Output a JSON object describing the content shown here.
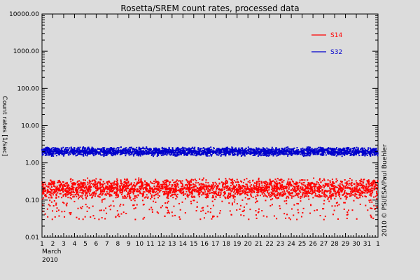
{
  "chart_data": {
    "type": "scatter",
    "title": "Rosetta/SREM count rates, processed data",
    "ylabel": "Count rates [1/sec]",
    "xlabel_month": "March",
    "xlabel_year": "2010",
    "credit": "2010 © PSI/ESA/Paul Buehler",
    "y_scale": "log",
    "ylim": [
      0.01,
      10000
    ],
    "y_ticks": [
      "0.01",
      "0.10",
      "1.00",
      "10.00",
      "100.00",
      "1000.00",
      "10000.00"
    ],
    "x_ticks": [
      "1",
      "2",
      "3",
      "4",
      "5",
      "6",
      "7",
      "8",
      "9",
      "10",
      "11",
      "12",
      "13",
      "14",
      "15",
      "16",
      "17",
      "18",
      "19",
      "20",
      "21",
      "22",
      "23",
      "24",
      "25",
      "26",
      "27",
      "28",
      "29",
      "30",
      "31",
      "1"
    ],
    "xlim_days": [
      1,
      32
    ],
    "legend_position": "top-right",
    "series": [
      {
        "name": "S14",
        "color": "#ff0000",
        "typical": 0.2,
        "band": [
          0.1,
          0.4
        ],
        "outlier_min": 0.03
      },
      {
        "name": "S32",
        "color": "#0000cc",
        "typical": 2.0,
        "band": [
          1.5,
          2.7
        ]
      }
    ]
  }
}
